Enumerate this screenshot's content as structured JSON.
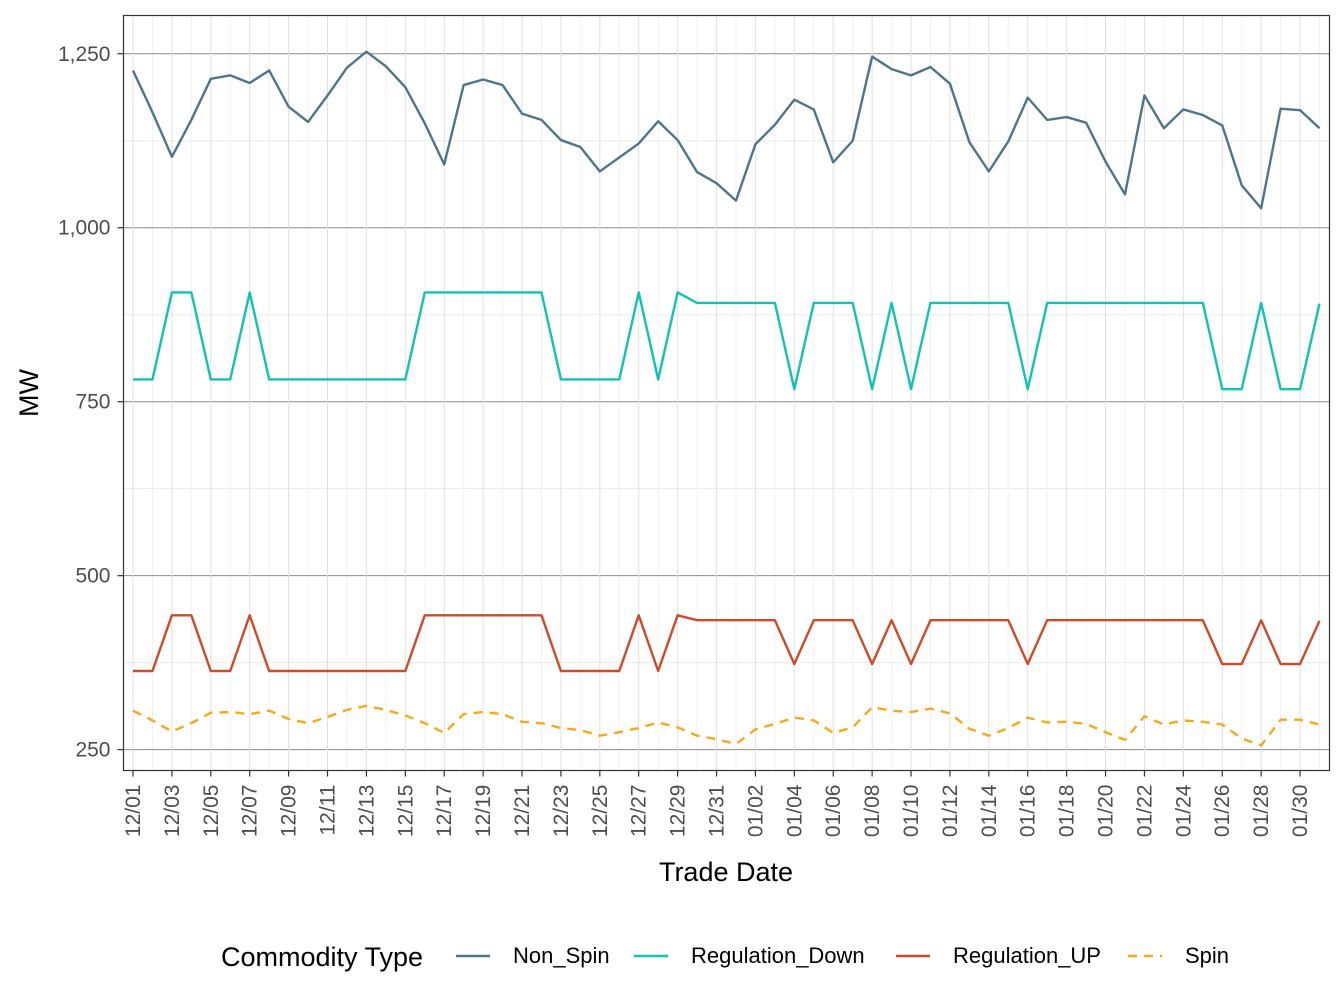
{
  "chart_data": {
    "type": "line",
    "xlabel": "Trade Date",
    "ylabel": "MW",
    "ylim": [
      220,
      1305
    ],
    "yticks": [
      250,
      500,
      750,
      1000,
      1250
    ],
    "ytick_labels": [
      "250",
      "500",
      "750",
      "1,000",
      "1,250"
    ],
    "grid": true,
    "legend_placement": "bottom",
    "legend_title": "Commodity Type",
    "x": [
      "2023-12-01",
      "2023-12-02",
      "2023-12-03",
      "2023-12-04",
      "2023-12-05",
      "2023-12-06",
      "2023-12-07",
      "2023-12-08",
      "2023-12-09",
      "2023-12-10",
      "2023-12-11",
      "2023-12-12",
      "2023-12-13",
      "2023-12-14",
      "2023-12-15",
      "2023-12-16",
      "2023-12-17",
      "2023-12-18",
      "2023-12-19",
      "2023-12-20",
      "2023-12-21",
      "2023-12-22",
      "2023-12-23",
      "2023-12-24",
      "2023-12-25",
      "2023-12-26",
      "2023-12-27",
      "2023-12-28",
      "2023-12-29",
      "2023-12-30",
      "2023-12-31",
      "2024-01-01",
      "2024-01-02",
      "2024-01-03",
      "2024-01-04",
      "2024-01-05",
      "2024-01-06",
      "2024-01-07",
      "2024-01-08",
      "2024-01-09",
      "2024-01-10",
      "2024-01-11",
      "2024-01-12",
      "2024-01-13",
      "2024-01-14",
      "2024-01-15",
      "2024-01-16",
      "2024-01-17",
      "2024-01-18",
      "2024-01-19",
      "2024-01-20",
      "2024-01-21",
      "2024-01-22",
      "2024-01-23",
      "2024-01-24",
      "2024-01-25",
      "2024-01-26",
      "2024-01-27",
      "2024-01-28",
      "2024-01-29",
      "2024-01-30",
      "2024-01-31"
    ],
    "x_tick_labels": [
      "12/01",
      "12/03",
      "12/05",
      "12/07",
      "12/09",
      "12/11",
      "12/13",
      "12/15",
      "12/17",
      "12/19",
      "12/21",
      "12/23",
      "12/25",
      "12/27",
      "12/29",
      "12/31",
      "01/02",
      "01/04",
      "01/06",
      "01/08",
      "01/10",
      "01/12",
      "01/14",
      "01/16",
      "01/18",
      "01/20",
      "01/22",
      "01/24",
      "01/26",
      "01/28",
      "01/30"
    ],
    "series": [
      {
        "name": "Non_Spin",
        "color": "#4e7588",
        "dash": "solid",
        "values": [
          1226,
          1166,
          1102,
          1155,
          1214,
          1219,
          1208,
          1226,
          1174,
          1152,
          1190,
          1230,
          1253,
          1232,
          1202,
          1150,
          1091,
          1205,
          1213,
          1205,
          1164,
          1155,
          1126,
          1116,
          1081,
          1101,
          1121,
          1153,
          1126,
          1080,
          1064,
          1039,
          1120,
          1148,
          1184,
          1170,
          1094,
          1125,
          1246,
          1228,
          1219,
          1231,
          1207,
          1123,
          1081,
          1124,
          1187,
          1155,
          1159,
          1151,
          1095,
          1048,
          1190,
          1143,
          1170,
          1162,
          1147,
          1061,
          1028,
          1171,
          1169,
          1143
        ]
      },
      {
        "name": "Regulation_Down",
        "color": "#14c2b1",
        "dash": "solid",
        "values": [
          782,
          782,
          907,
          907,
          782,
          782,
          907,
          782,
          782,
          782,
          782,
          782,
          782,
          782,
          782,
          907,
          907,
          907,
          907,
          907,
          907,
          907,
          782,
          782,
          782,
          782,
          907,
          782,
          907,
          892,
          892,
          892,
          892,
          892,
          768,
          892,
          892,
          892,
          768,
          892,
          768,
          892,
          892,
          892,
          892,
          892,
          768,
          892,
          892,
          892,
          892,
          892,
          892,
          892,
          892,
          892,
          768,
          768,
          892,
          768,
          768,
          891
        ]
      },
      {
        "name": "Regulation_UP",
        "color": "#cf4a28",
        "dash": "solid",
        "values": [
          363,
          363,
          443,
          443,
          363,
          363,
          443,
          363,
          363,
          363,
          363,
          363,
          363,
          363,
          363,
          443,
          443,
          443,
          443,
          443,
          443,
          443,
          363,
          363,
          363,
          363,
          443,
          363,
          443,
          436,
          436,
          436,
          436,
          436,
          373,
          436,
          436,
          436,
          373,
          436,
          373,
          436,
          436,
          436,
          436,
          436,
          373,
          436,
          436,
          436,
          436,
          436,
          436,
          436,
          436,
          436,
          373,
          373,
          436,
          373,
          373,
          435
        ]
      },
      {
        "name": "Spin",
        "color": "#f6a91c",
        "dash": "dashed",
        "values": [
          306,
          292,
          276,
          288,
          303,
          304,
          301,
          306,
          294,
          288,
          297,
          307,
          313,
          307,
          299,
          288,
          274,
          301,
          304,
          301,
          290,
          288,
          281,
          278,
          270,
          275,
          281,
          289,
          282,
          270,
          265,
          258,
          279,
          287,
          296,
          292,
          274,
          282,
          311,
          306,
          304,
          309,
          302,
          280,
          270,
          281,
          296,
          289,
          290,
          287,
          275,
          264,
          298,
          286,
          292,
          290,
          286,
          266,
          256,
          293,
          293,
          286
        ]
      }
    ]
  }
}
